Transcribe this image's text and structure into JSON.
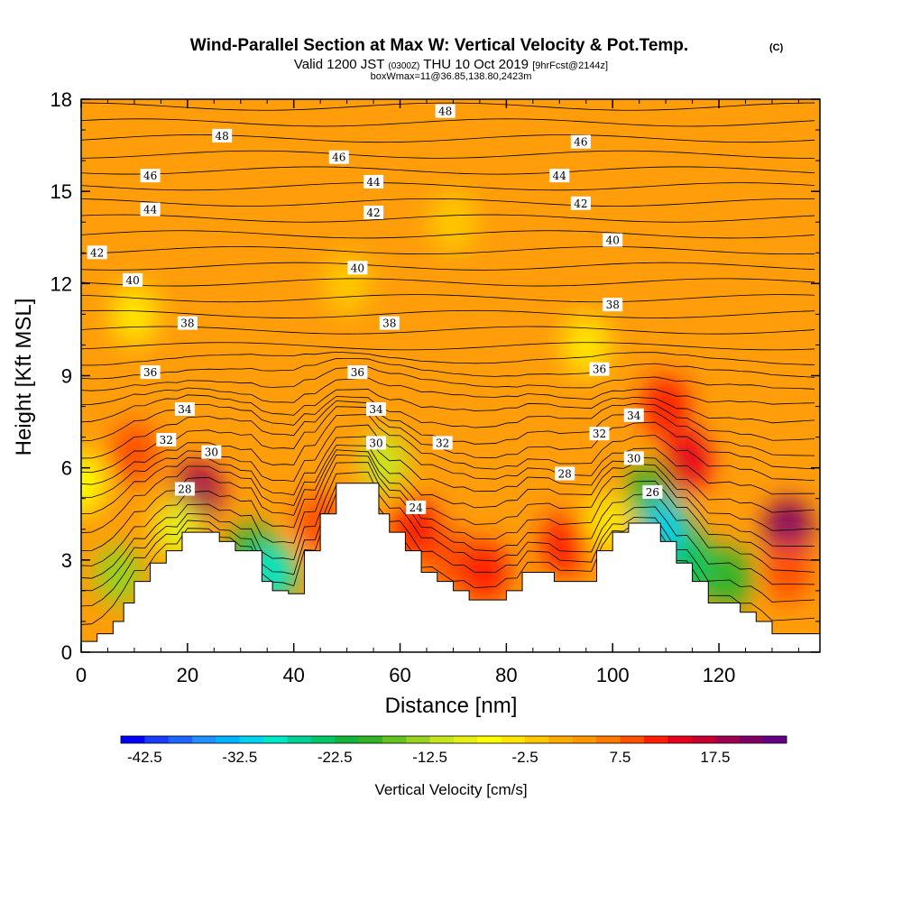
{
  "header": {
    "title": "Wind-Parallel Section at Max W: Vertical Velocity & Pot.Temp.",
    "title_mark": "(C)",
    "valid_prefix": "Valid 1200 JST",
    "valid_utc": "(0300Z)",
    "valid_date": "THU 10 Oct 2019",
    "forecast": "[9hrFcst@2144z]",
    "box_info": "boxWmax=11@36.85,138.80,2423m"
  },
  "chart_data": {
    "type": "heatmap",
    "xlabel": "Distance [nm]",
    "ylabel": "Height [Kft MSL]",
    "xlim": [
      0,
      139
    ],
    "ylim": [
      0,
      18
    ],
    "x_ticks": [
      "0",
      "20",
      "40",
      "60",
      "80",
      "100",
      "120"
    ],
    "y_ticks": [
      "0",
      "3",
      "6",
      "9",
      "12",
      "15",
      "18"
    ],
    "colorbar": {
      "label": "Vertical Velocity [cm/s]",
      "tick_labels": [
        "-42.5",
        "-32.5",
        "-22.5",
        "-12.5",
        "-2.5",
        "7.5",
        "17.5"
      ],
      "levels": [
        -45,
        -42.5,
        -40,
        -37.5,
        -35,
        -32.5,
        -30,
        -27.5,
        -25,
        -22.5,
        -20,
        -17.5,
        -15,
        -12.5,
        -10,
        -7.5,
        -5,
        -2.5,
        0,
        2.5,
        5,
        7.5,
        10,
        12.5,
        15,
        17.5,
        20,
        22.5
      ],
      "colors": [
        "#0000ff",
        "#1a3cff",
        "#1e64ff",
        "#1e90ff",
        "#00b4ff",
        "#00d2f0",
        "#00e6c8",
        "#00d296",
        "#00c864",
        "#14b43c",
        "#32b428",
        "#64c31e",
        "#96d21e",
        "#c8e61e",
        "#e6f014",
        "#ffff00",
        "#ffe600",
        "#ffc800",
        "#ffaa00",
        "#ff9600",
        "#ff7800",
        "#ff5000",
        "#ff1e00",
        "#e6001e",
        "#c80032",
        "#a00050",
        "#820064",
        "#640082"
      ]
    },
    "terrain_profile": [
      [
        0,
        0.35
      ],
      [
        3,
        0.35
      ],
      [
        3,
        0.6
      ],
      [
        6,
        0.6
      ],
      [
        6,
        1.0
      ],
      [
        8,
        1.0
      ],
      [
        8,
        1.6
      ],
      [
        10,
        1.6
      ],
      [
        10,
        2.3
      ],
      [
        13,
        2.3
      ],
      [
        13,
        2.9
      ],
      [
        16,
        2.9
      ],
      [
        16,
        3.3
      ],
      [
        19,
        3.3
      ],
      [
        19,
        3.9
      ],
      [
        26,
        3.9
      ],
      [
        26,
        3.6
      ],
      [
        29,
        3.6
      ],
      [
        29,
        3.3
      ],
      [
        34,
        3.3
      ],
      [
        34,
        2.3
      ],
      [
        36,
        2.3
      ],
      [
        36,
        2.0
      ],
      [
        39,
        2.0
      ],
      [
        39,
        1.9
      ],
      [
        42,
        1.9
      ],
      [
        42,
        3.3
      ],
      [
        45,
        3.3
      ],
      [
        45,
        4.5
      ],
      [
        48,
        4.5
      ],
      [
        48,
        5.5
      ],
      [
        56,
        5.5
      ],
      [
        56,
        4.5
      ],
      [
        58,
        4.5
      ],
      [
        58,
        3.9
      ],
      [
        61,
        3.9
      ],
      [
        61,
        3.3
      ],
      [
        64,
        3.3
      ],
      [
        64,
        2.6
      ],
      [
        67,
        2.6
      ],
      [
        67,
        2.3
      ],
      [
        70,
        2.3
      ],
      [
        70,
        2.0
      ],
      [
        73,
        2.0
      ],
      [
        73,
        1.7
      ],
      [
        80,
        1.7
      ],
      [
        80,
        2.0
      ],
      [
        83,
        2.0
      ],
      [
        83,
        2.6
      ],
      [
        89,
        2.6
      ],
      [
        89,
        2.3
      ],
      [
        97,
        2.3
      ],
      [
        97,
        3.3
      ],
      [
        100,
        3.3
      ],
      [
        100,
        3.9
      ],
      [
        103,
        3.9
      ],
      [
        103,
        4.2
      ],
      [
        109,
        4.2
      ],
      [
        109,
        3.6
      ],
      [
        112,
        3.6
      ],
      [
        112,
        2.9
      ],
      [
        115,
        2.9
      ],
      [
        115,
        2.3
      ],
      [
        118,
        2.3
      ],
      [
        118,
        1.6
      ],
      [
        124,
        1.6
      ],
      [
        124,
        1.3
      ],
      [
        127,
        1.3
      ],
      [
        127,
        1.0
      ],
      [
        130,
        1.0
      ],
      [
        130,
        0.6
      ],
      [
        139,
        0.6
      ]
    ],
    "velocity_cells": [
      {
        "x": 10,
        "y": 11,
        "w": -3
      },
      {
        "x": 10,
        "y": 6.5,
        "w": 8
      },
      {
        "x": 22,
        "y": 5.2,
        "w": 18
      },
      {
        "x": 7,
        "y": 2.5,
        "w": -14
      },
      {
        "x": 18,
        "y": 4,
        "w": -8
      },
      {
        "x": 32,
        "y": 3.2,
        "w": -20
      },
      {
        "x": 36,
        "y": 2.6,
        "w": -30
      },
      {
        "x": 45,
        "y": 4.2,
        "w": 9
      },
      {
        "x": 57,
        "y": 6.2,
        "w": -12
      },
      {
        "x": 63,
        "y": 4,
        "w": 12
      },
      {
        "x": 70,
        "y": 3,
        "w": 8
      },
      {
        "x": 76,
        "y": 2.6,
        "w": 10
      },
      {
        "x": 91,
        "y": 3.5,
        "w": 10
      },
      {
        "x": 99,
        "y": 4.2,
        "w": -5
      },
      {
        "x": 107,
        "y": 5.2,
        "w": -20
      },
      {
        "x": 110,
        "y": 4,
        "w": -32
      },
      {
        "x": 115,
        "y": 2.8,
        "w": -24
      },
      {
        "x": 122,
        "y": 2.4,
        "w": -20
      },
      {
        "x": 110,
        "y": 8,
        "w": 12
      },
      {
        "x": 114,
        "y": 6.2,
        "w": 14
      },
      {
        "x": 133,
        "y": 4,
        "w": 20
      },
      {
        "x": 133,
        "y": 2.6,
        "w": 8
      },
      {
        "x": 0,
        "y": 5.5,
        "w": -6
      },
      {
        "x": 70,
        "y": 14,
        "w": -2
      },
      {
        "x": 50,
        "y": 12,
        "w": -2
      },
      {
        "x": 95,
        "y": 10,
        "w": -3
      }
    ],
    "theta_labels": [
      {
        "x": 3,
        "y": 13,
        "t": "42"
      },
      {
        "x": 9.7,
        "y": 12.1,
        "t": "40"
      },
      {
        "x": 13,
        "y": 15.5,
        "t": "46"
      },
      {
        "x": 13,
        "y": 14.4,
        "t": "44"
      },
      {
        "x": 26.5,
        "y": 16.8,
        "t": "48"
      },
      {
        "x": 20,
        "y": 10.7,
        "t": "38"
      },
      {
        "x": 13,
        "y": 9.1,
        "t": "36"
      },
      {
        "x": 19.5,
        "y": 7.9,
        "t": "34"
      },
      {
        "x": 16,
        "y": 6.9,
        "t": "32"
      },
      {
        "x": 24.5,
        "y": 6.5,
        "t": "30"
      },
      {
        "x": 19.5,
        "y": 5.3,
        "t": "28"
      },
      {
        "x": 48.5,
        "y": 16.1,
        "t": "46"
      },
      {
        "x": 55,
        "y": 15.3,
        "t": "44"
      },
      {
        "x": 55,
        "y": 14.3,
        "t": "42"
      },
      {
        "x": 52,
        "y": 12.5,
        "t": "40"
      },
      {
        "x": 58,
        "y": 10.7,
        "t": "38"
      },
      {
        "x": 52,
        "y": 9.1,
        "t": "36"
      },
      {
        "x": 55.5,
        "y": 7.9,
        "t": "34"
      },
      {
        "x": 55.5,
        "y": 6.8,
        "t": "30"
      },
      {
        "x": 68,
        "y": 6.8,
        "t": "32"
      },
      {
        "x": 63,
        "y": 4.7,
        "t": "24"
      },
      {
        "x": 68.5,
        "y": 17.6,
        "t": "48"
      },
      {
        "x": 94,
        "y": 16.6,
        "t": "46"
      },
      {
        "x": 90,
        "y": 15.5,
        "t": "44"
      },
      {
        "x": 94,
        "y": 14.6,
        "t": "42"
      },
      {
        "x": 100,
        "y": 13.4,
        "t": "40"
      },
      {
        "x": 100,
        "y": 11.3,
        "t": "38"
      },
      {
        "x": 97.5,
        "y": 9.2,
        "t": "36"
      },
      {
        "x": 104,
        "y": 7.7,
        "t": "34"
      },
      {
        "x": 97.5,
        "y": 7.1,
        "t": "32"
      },
      {
        "x": 104,
        "y": 6.3,
        "t": "30"
      },
      {
        "x": 91,
        "y": 5.8,
        "t": "28"
      },
      {
        "x": 107.5,
        "y": 5.2,
        "t": "26"
      }
    ]
  }
}
